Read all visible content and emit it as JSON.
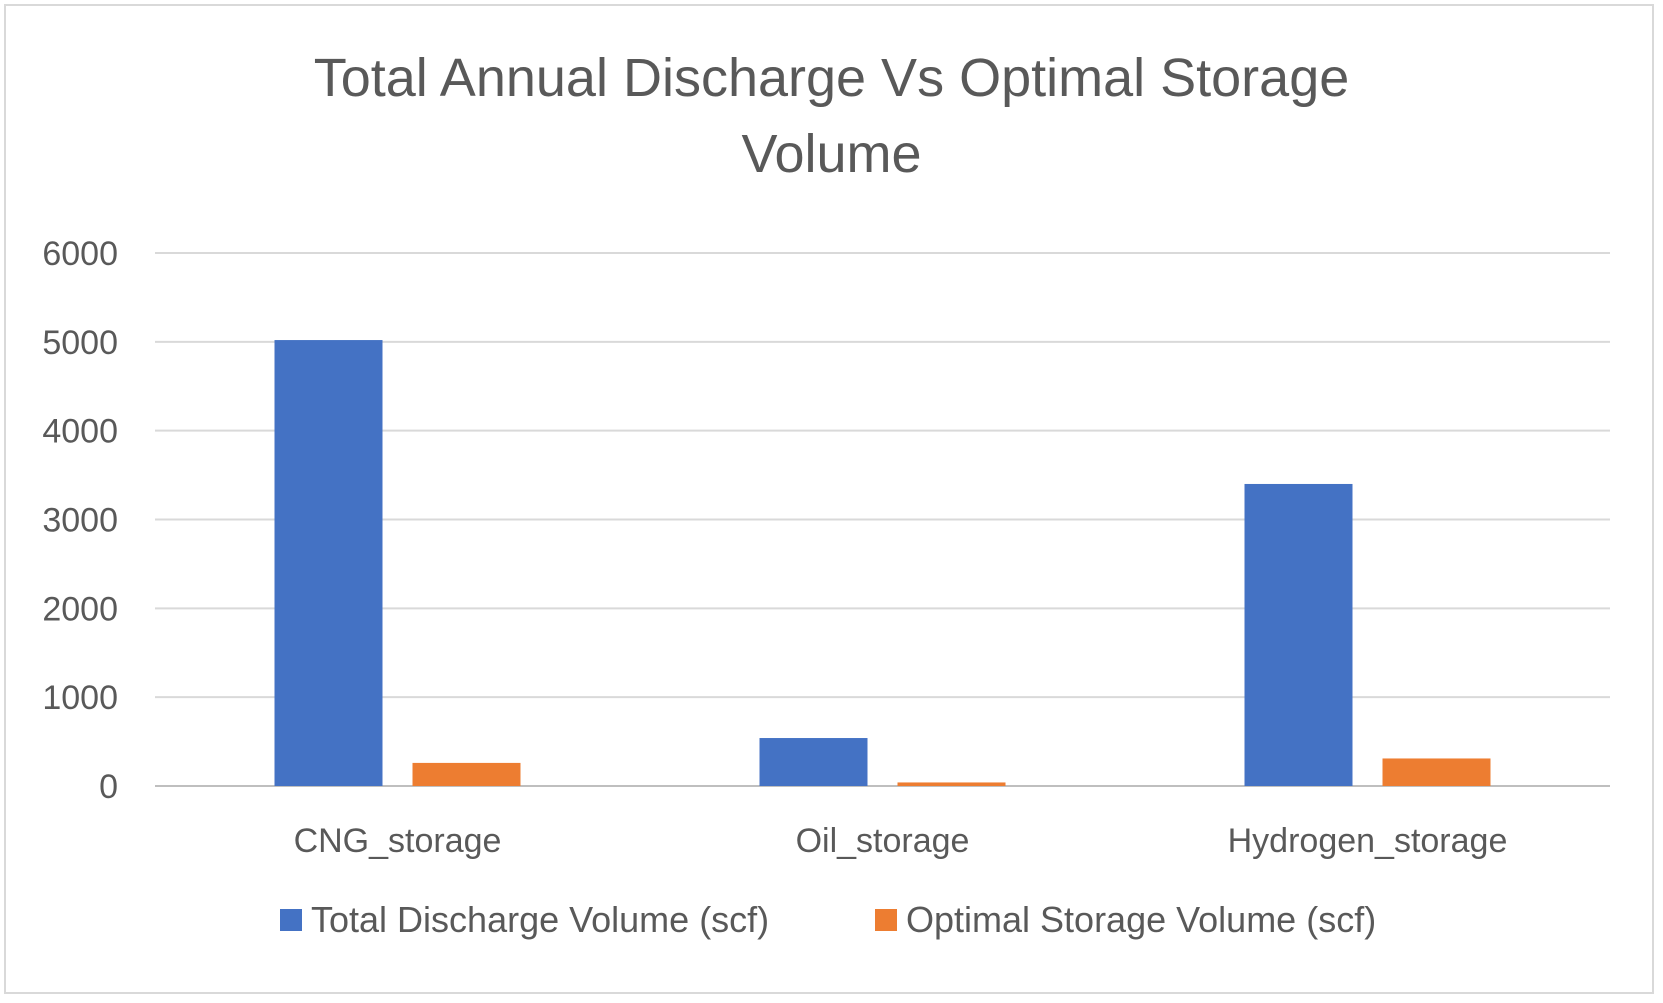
{
  "chart_data": {
    "type": "bar",
    "title_line1": "Total Annual Discharge Vs Optimal Storage",
    "title_line2": "Volume",
    "categories": [
      "CNG_storage",
      "Oil_storage",
      "Hydrogen_storage"
    ],
    "series": [
      {
        "name": "Total Discharge Volume (scf)",
        "color": "#4472c4",
        "values": [
          5020,
          540,
          3400
        ]
      },
      {
        "name": "Optimal Storage Volume (scf)",
        "color": "#ed7d31",
        "values": [
          260,
          40,
          310
        ]
      }
    ],
    "ylim": [
      0,
      6000
    ],
    "yticks": [
      "0",
      "1000",
      "2000",
      "3000",
      "4000",
      "5000",
      "6000"
    ],
    "grid": true,
    "legend": "bottom"
  }
}
